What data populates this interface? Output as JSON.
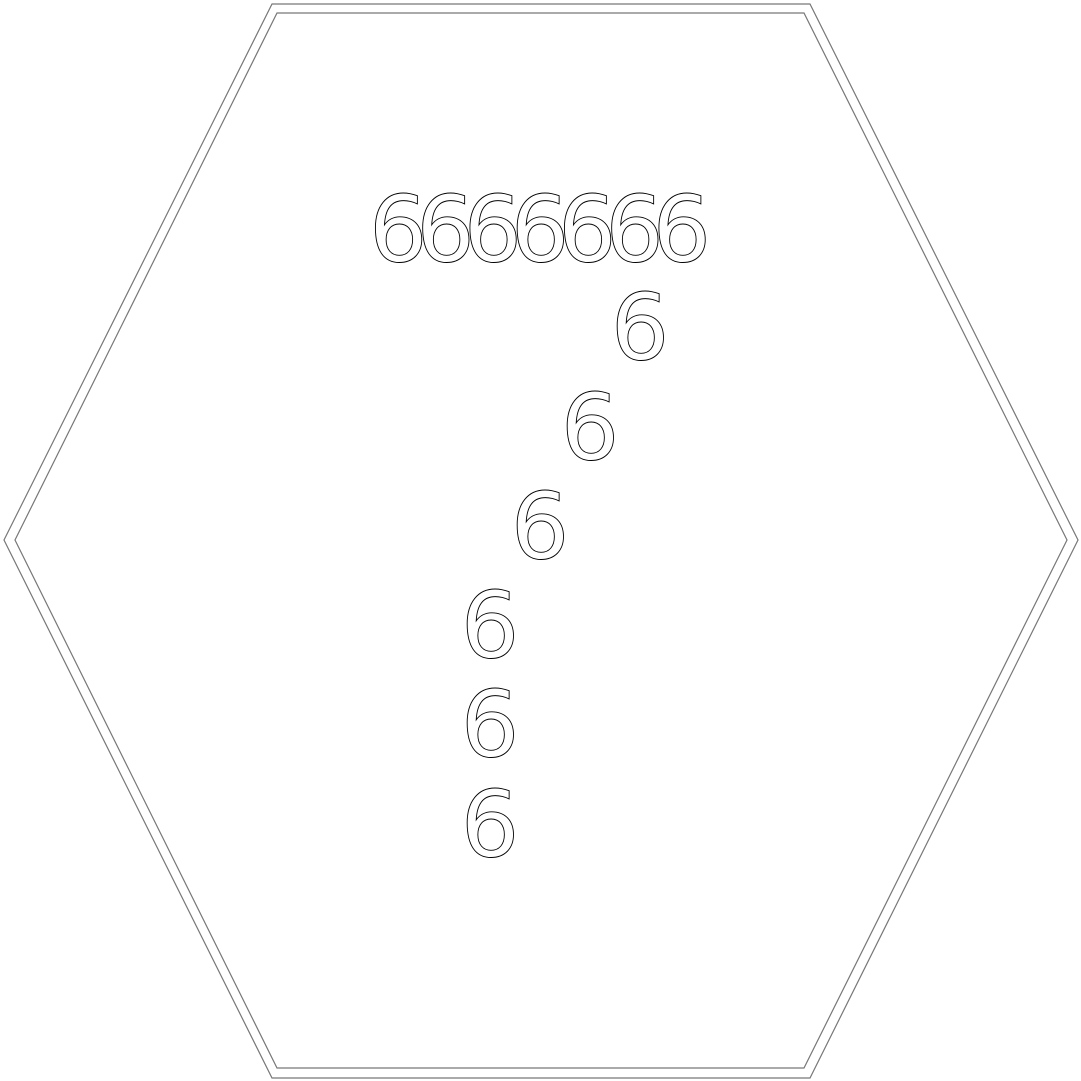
{
  "figure": {
    "shape": "hexagon",
    "outline_color": "#000000",
    "background": "#ffffff",
    "digits": {
      "top_row": "6666666",
      "diagonal": [
        "6",
        "6",
        "6",
        "6",
        "6",
        "6"
      ]
    }
  }
}
